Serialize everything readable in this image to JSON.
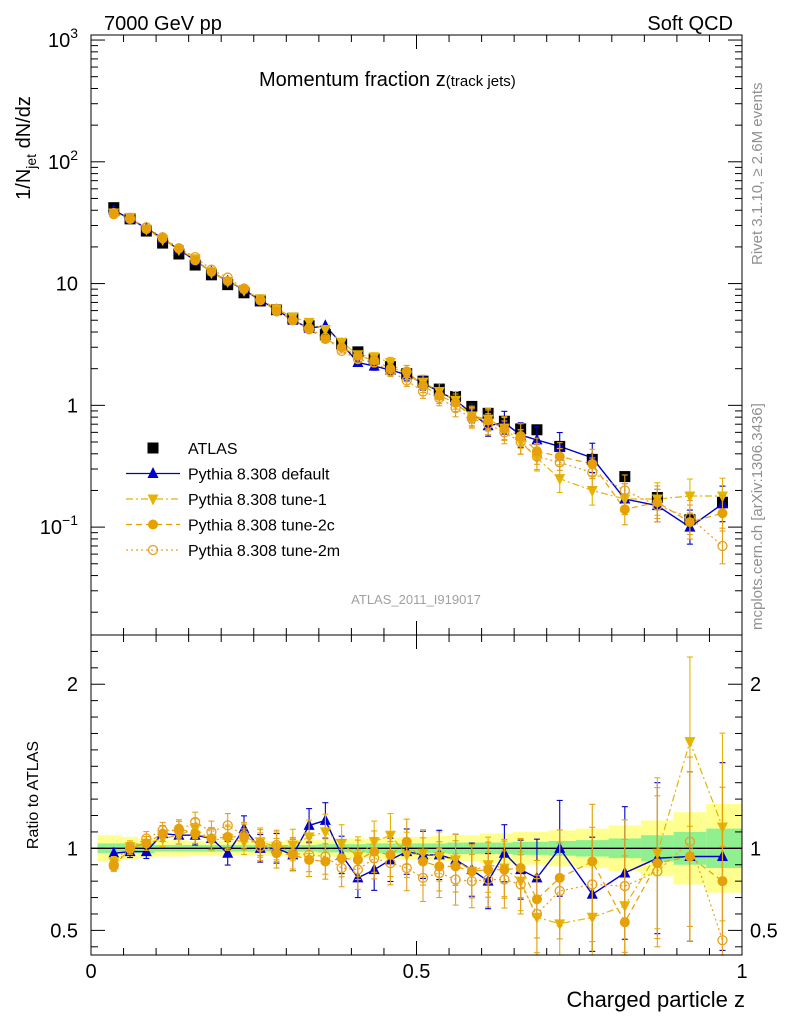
{
  "header": {
    "left": "7000 GeV pp",
    "right": "Soft QCD"
  },
  "side_labels": {
    "rivet": "Rivet 3.1.10, ≥ 2.6M events",
    "mcplots": "mcplots.cern.ch [arXiv:1306.3436]"
  },
  "chart_data": [
    {
      "type": "scatter",
      "title": "Momentum fraction z",
      "title_sub": "(track jets)",
      "watermark": "ATLAS_2011_I919017",
      "ylabel": "1/N_jet dN/dz",
      "xlim": [
        0,
        1
      ],
      "ylim": [
        0.013,
        1100
      ],
      "yscale": "log",
      "yticks": [
        {
          "v": 0.1,
          "base": "10",
          "exp": "−1"
        },
        {
          "v": 1,
          "base": "1",
          "exp": ""
        },
        {
          "v": 10,
          "base": "10",
          "exp": ""
        },
        {
          "v": 100,
          "base": "10",
          "exp": "2"
        },
        {
          "v": 1000,
          "base": "10",
          "exp": "3"
        }
      ],
      "legend_position": "bottom-left",
      "x": [
        0.035,
        0.06,
        0.085,
        0.11,
        0.135,
        0.16,
        0.185,
        0.21,
        0.235,
        0.26,
        0.285,
        0.31,
        0.335,
        0.36,
        0.385,
        0.41,
        0.435,
        0.46,
        0.485,
        0.51,
        0.535,
        0.56,
        0.585,
        0.61,
        0.635,
        0.66,
        0.685,
        0.72,
        0.77,
        0.82,
        0.87,
        0.92,
        0.97
      ],
      "series": [
        {
          "name": "ATLAS",
          "color": "#000000",
          "marker": "square",
          "values": [
            42,
            34,
            27,
            21.5,
            17.5,
            14.2,
            11.8,
            9.8,
            8.4,
            7.2,
            6.1,
            5.2,
            4.5,
            3.8,
            3.2,
            2.75,
            2.4,
            2.08,
            1.82,
            1.58,
            1.36,
            1.18,
            0.98,
            0.86,
            0.74,
            0.64,
            0.63,
            0.46,
            0.36,
            0.26,
            0.175,
            0.115,
            0.16
          ]
        },
        {
          "name": "Pythia 8.308 default",
          "color": "#0000cc",
          "marker": "triangle-up",
          "line": "solid",
          "values": [
            40,
            34,
            28.5,
            23.5,
            19,
            15.5,
            12.5,
            10.5,
            8.9,
            7.3,
            6.1,
            5,
            4.3,
            4.5,
            3.2,
            2.25,
            2.1,
            1.95,
            1.78,
            1.52,
            1.3,
            1.1,
            0.86,
            0.68,
            0.72,
            0.57,
            0.52,
            0.46,
            0.37,
            0.17,
            0.15,
            0.1,
            0.155
          ]
        },
        {
          "name": "Pythia 8.308 tune-1",
          "color": "#e6b400",
          "marker": "triangle-down",
          "line": "dashdot",
          "values": [
            38,
            35,
            28,
            23,
            19,
            16,
            12.3,
            10.4,
            8.8,
            7.5,
            6.2,
            5.3,
            4.8,
            4.2,
            3.3,
            2.6,
            2.5,
            2.25,
            1.75,
            1.55,
            1.3,
            1.1,
            0.82,
            0.77,
            0.65,
            0.5,
            0.37,
            0.25,
            0.2,
            0.17,
            0.17,
            0.18,
            0.18
          ]
        },
        {
          "name": "Pythia 8.308 tune-2c",
          "color": "#e6a000",
          "marker": "circle",
          "line": "dashed",
          "values": [
            37,
            34.5,
            28,
            23.5,
            19.5,
            15.5,
            12.5,
            10.5,
            9,
            7.4,
            5.9,
            5,
            4.2,
            3.5,
            3,
            2.55,
            2.35,
            2,
            1.9,
            1.45,
            1.2,
            1.05,
            0.8,
            0.75,
            0.64,
            0.56,
            0.42,
            0.38,
            0.33,
            0.14,
            0.16,
            0.11,
            0.13
          ]
        },
        {
          "name": "Pythia 8.308 tune-2m",
          "color": "#e6a020",
          "marker": "circle-open",
          "line": "dotted",
          "values": [
            38,
            34,
            29,
            24,
            19.5,
            16.5,
            13,
            11.2,
            9.1,
            7.3,
            6.2,
            5,
            4.3,
            3.6,
            2.8,
            2.4,
            2.25,
            1.9,
            1.6,
            1.3,
            1.15,
            0.95,
            0.78,
            0.7,
            0.6,
            0.5,
            0.38,
            0.34,
            0.28,
            0.2,
            0.15,
            0.12,
            0.07
          ]
        }
      ]
    },
    {
      "type": "scatter",
      "ylabel": "Ratio to ATLAS",
      "xlabel": "Charged particle z",
      "xlim": [
        0,
        1
      ],
      "ylim": [
        0.35,
        2.3
      ],
      "xticks": [
        0,
        0.5,
        1
      ],
      "yticks": [
        0.5,
        1,
        2
      ],
      "tick_labels_x": [
        "0",
        "0.5",
        "1"
      ],
      "tick_labels_y": [
        "0.5",
        "1",
        "2"
      ],
      "reference_line": 1,
      "bands": {
        "inner_color": "#90f090",
        "outer_color": "#ffff90",
        "inner_halfwidth": [
          0.03,
          0.03,
          0.03,
          0.02,
          0.02,
          0.02,
          0.02,
          0.02,
          0.02,
          0.02,
          0.02,
          0.02,
          0.02,
          0.025,
          0.025,
          0.025,
          0.03,
          0.03,
          0.03,
          0.03,
          0.03,
          0.035,
          0.035,
          0.035,
          0.035,
          0.04,
          0.04,
          0.045,
          0.05,
          0.06,
          0.08,
          0.1,
          0.12
        ],
        "outer_halfwidth": [
          0.08,
          0.07,
          0.06,
          0.05,
          0.05,
          0.045,
          0.045,
          0.045,
          0.045,
          0.045,
          0.045,
          0.05,
          0.05,
          0.05,
          0.055,
          0.06,
          0.06,
          0.065,
          0.07,
          0.07,
          0.075,
          0.08,
          0.08,
          0.09,
          0.09,
          0.1,
          0.1,
          0.11,
          0.12,
          0.14,
          0.17,
          0.22,
          0.27
        ]
      },
      "series": [
        {
          "name": "Pythia 8.308 default",
          "values": [
            0.97,
            0.98,
            0.98,
            1.09,
            1.08,
            1.08,
            1.06,
            0.97,
            1.12,
            1.0,
            1.0,
            0.96,
            1.14,
            1.17,
            0.96,
            0.82,
            0.87,
            0.93,
            0.98,
            0.96,
            0.96,
            0.93,
            0.87,
            0.8,
            0.97,
            0.87,
            0.82,
            1.0,
            0.72,
            0.85,
            0.94,
            0.95,
            0.95
          ]
        },
        {
          "name": "Pythia 8.308 tune-1",
          "values": [
            0.92,
            1.01,
            1.03,
            1.06,
            1.08,
            1.12,
            1.05,
            1.06,
            1.04,
            1.04,
            1.01,
            1.02,
            1.07,
            1.1,
            1.03,
            0.95,
            1.04,
            1.08,
            0.96,
            0.97,
            0.95,
            0.93,
            0.86,
            0.9,
            0.88,
            0.8,
            0.58,
            0.54,
            0.58,
            0.65,
            0.97,
            1.65,
            1.13
          ]
        },
        {
          "name": "Pythia 8.308 tune-2c",
          "values": [
            0.89,
            1.0,
            1.03,
            1.09,
            1.12,
            1.09,
            1.06,
            1.07,
            1.07,
            1.03,
            0.97,
            0.96,
            0.93,
            0.92,
            0.94,
            0.93,
            0.98,
            0.96,
            1.04,
            0.92,
            0.89,
            0.89,
            0.86,
            0.87,
            0.87,
            0.88,
            0.69,
            0.82,
            0.92,
            0.55,
            0.91,
            0.95,
            0.8
          ]
        },
        {
          "name": "Pythia 8.308 tune-2m",
          "values": [
            0.9,
            1.0,
            1.06,
            1.11,
            1.11,
            1.16,
            1.1,
            1.14,
            1.08,
            1.01,
            1.02,
            0.97,
            0.96,
            0.95,
            0.88,
            0.87,
            0.94,
            0.91,
            0.88,
            0.82,
            0.85,
            0.81,
            0.8,
            0.81,
            0.81,
            0.78,
            0.6,
            0.74,
            0.78,
            0.77,
            0.86,
            1.04,
            0.44
          ]
        }
      ]
    }
  ]
}
